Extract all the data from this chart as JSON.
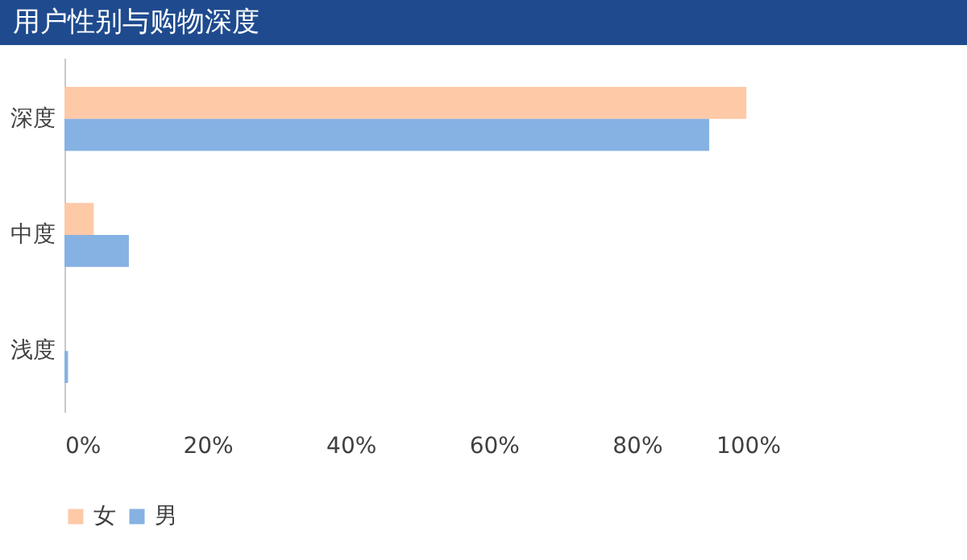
{
  "chart_data": {
    "type": "bar",
    "title": "用户性别与购物深度",
    "orientation": "horizontal",
    "categories": [
      "深度",
      "中度",
      "浅度"
    ],
    "series": [
      {
        "name": "女",
        "color": "#fec9a7",
        "values": [
          95.3,
          4.1,
          0
        ]
      },
      {
        "name": "男",
        "color": "#86b1e3",
        "values": [
          90.1,
          9.0,
          0.5
        ]
      }
    ],
    "xlim": [
      0,
      100
    ],
    "xticks": [
      {
        "value": 0,
        "label": "0%"
      },
      {
        "value": 20,
        "label": "20%"
      },
      {
        "value": 40,
        "label": "40%"
      },
      {
        "value": 60,
        "label": "60%"
      },
      {
        "value": 80,
        "label": "80%"
      },
      {
        "value": 100,
        "label": "100%"
      }
    ],
    "grid": false,
    "legend": "bottom"
  }
}
